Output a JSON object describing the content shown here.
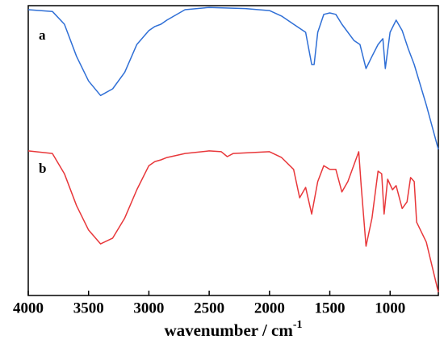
{
  "chart_data": {
    "type": "line",
    "x_label": "wavenumber / cm",
    "x_label_superscript": "-1",
    "xlim": [
      4000,
      600
    ],
    "ylim": [
      0,
      100
    ],
    "xticks": [
      4000,
      3500,
      3000,
      2500,
      2000,
      1500,
      1000
    ],
    "annotations": [
      "a",
      "b"
    ],
    "series": [
      {
        "name": "a",
        "color": "#2f6fd6",
        "x": [
          4000,
          3800,
          3700,
          3600,
          3500,
          3400,
          3300,
          3200,
          3100,
          3000,
          2950,
          2900,
          2850,
          2700,
          2500,
          2200,
          2000,
          1900,
          1800,
          1700,
          1650,
          1630,
          1600,
          1550,
          1500,
          1450,
          1400,
          1300,
          1250,
          1200,
          1150,
          1100,
          1060,
          1040,
          1000,
          950,
          900,
          850,
          800,
          700,
          600
        ],
        "values": [
          98.6,
          98,
          93.6,
          82.5,
          74,
          69,
          71.3,
          77,
          86.6,
          91.4,
          92.8,
          93.6,
          95,
          98.6,
          99.4,
          99,
          98.3,
          96.4,
          93.6,
          90.8,
          79.7,
          79.7,
          90.8,
          97,
          97.5,
          97,
          93.6,
          88,
          86.6,
          78.3,
          82.5,
          86.6,
          88.6,
          78.3,
          90.8,
          95,
          91.4,
          85.2,
          79.7,
          65.7,
          50.4
        ]
      },
      {
        "name": "b",
        "color": "#e8373a",
        "x": [
          4000,
          3800,
          3700,
          3600,
          3500,
          3400,
          3300,
          3200,
          3100,
          3000,
          2950,
          2900,
          2850,
          2700,
          2500,
          2400,
          2350,
          2300,
          2000,
          1900,
          1800,
          1750,
          1700,
          1650,
          1600,
          1550,
          1500,
          1450,
          1400,
          1350,
          1260,
          1240,
          1200,
          1150,
          1100,
          1070,
          1050,
          1020,
          980,
          950,
          900,
          860,
          830,
          800,
          780,
          700,
          600
        ],
        "values": [
          49.9,
          49,
          42,
          31,
          22.6,
          17.8,
          19.8,
          26.7,
          36.5,
          44.8,
          46.2,
          46.8,
          47.6,
          49,
          49.9,
          49.6,
          47.9,
          49,
          49.6,
          47.6,
          43.5,
          33.7,
          37.3,
          28.1,
          39.3,
          44.8,
          43.5,
          43.5,
          35.7,
          39.3,
          49.6,
          37.9,
          17,
          26.7,
          42.9,
          42,
          28.1,
          40.1,
          36.5,
          37.9,
          30,
          32.3,
          40.7,
          39.3,
          25.3,
          18.4,
          1.1
        ]
      }
    ]
  }
}
